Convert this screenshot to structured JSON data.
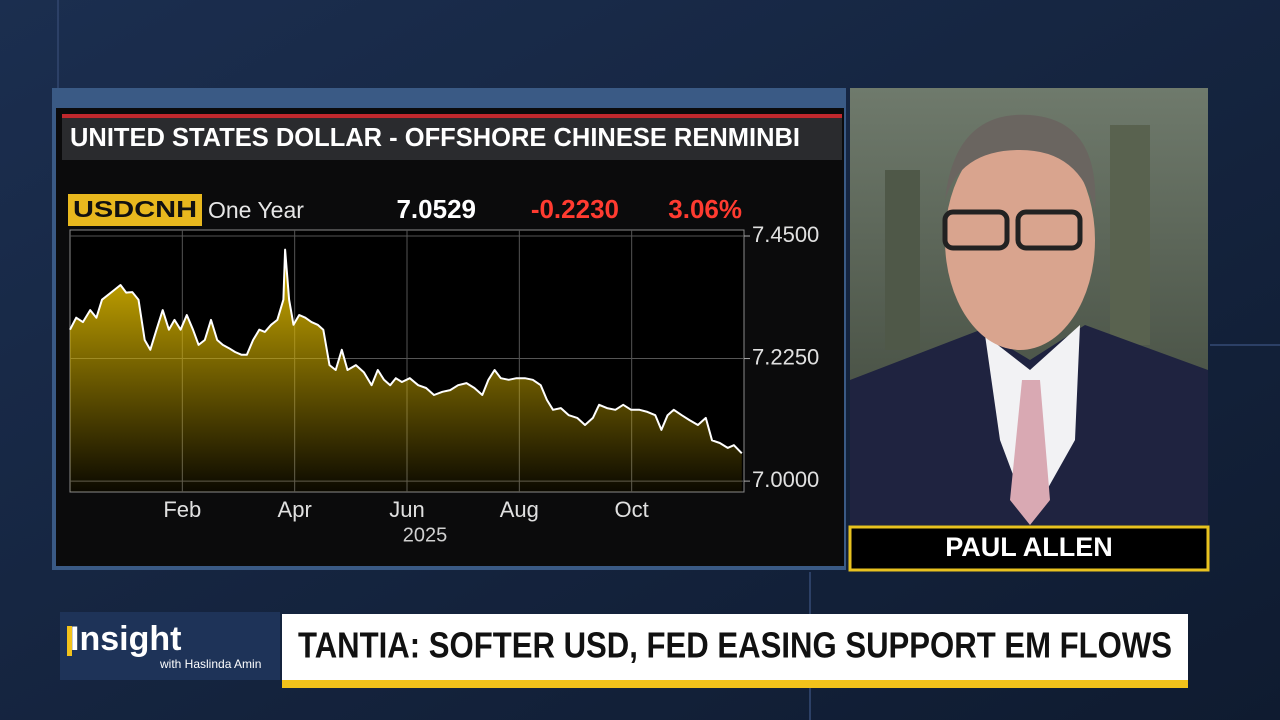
{
  "chart_data": {
    "type": "area",
    "title": "UNITED STATES DOLLAR - OFFSHORE CHINESE RENMINBI",
    "ticker": "USDCNH",
    "period": "One Year",
    "last": "7.0529",
    "change": "-0.2230",
    "change_pct": "3.06%",
    "x_label": "2025",
    "color": "#ffffff",
    "fill": "#d8b400",
    "grid": true,
    "xlim": [
      0,
      12
    ],
    "xticks": [
      {
        "value": 2,
        "label": "Feb"
      },
      {
        "value": 4,
        "label": "Apr"
      },
      {
        "value": 6,
        "label": "Jun"
      },
      {
        "value": 8,
        "label": "Aug"
      },
      {
        "value": 10,
        "label": "Oct"
      }
    ],
    "ylim": [
      6.98,
      7.461
    ],
    "yticks": [
      {
        "value": 7.45,
        "label": "7.4500"
      },
      {
        "value": 7.225,
        "label": "7.2250"
      },
      {
        "value": 7.0,
        "label": "7.0000"
      }
    ],
    "x": [
      0,
      0.11,
      0.23,
      0.36,
      0.47,
      0.57,
      0.68,
      0.79,
      0.9,
      1.0,
      1.11,
      1.22,
      1.33,
      1.43,
      1.54,
      1.65,
      1.76,
      1.86,
      1.97,
      2.08,
      2.19,
      2.29,
      2.4,
      2.51,
      2.62,
      2.72,
      2.83,
      2.94,
      3.05,
      3.15,
      3.26,
      3.37,
      3.47,
      3.58,
      3.69,
      3.8,
      3.83,
      3.9,
      3.98,
      4.08,
      4.19,
      4.3,
      4.41,
      4.51,
      4.62,
      4.73,
      4.84,
      4.94,
      5.09,
      5.23,
      5.37,
      5.48,
      5.59,
      5.7,
      5.8,
      5.91,
      6.05,
      6.2,
      6.34,
      6.48,
      6.63,
      6.77,
      6.91,
      7.06,
      7.2,
      7.34,
      7.45,
      7.56,
      7.67,
      7.81,
      7.95,
      8.1,
      8.24,
      8.38,
      8.49,
      8.6,
      8.74,
      8.88,
      9.03,
      9.17,
      9.31,
      9.42,
      9.56,
      9.71,
      9.85,
      9.99,
      10.14,
      10.28,
      10.42,
      10.53,
      10.64,
      10.75,
      10.89,
      11.03,
      11.18,
      11.32,
      11.43,
      11.57,
      11.71,
      11.82,
      11.96
    ],
    "values": [
      7.278,
      7.3,
      7.292,
      7.314,
      7.3,
      7.333,
      7.342,
      7.351,
      7.36,
      7.346,
      7.347,
      7.333,
      7.259,
      7.241,
      7.278,
      7.314,
      7.278,
      7.296,
      7.278,
      7.305,
      7.278,
      7.25,
      7.259,
      7.296,
      7.259,
      7.25,
      7.244,
      7.237,
      7.232,
      7.232,
      7.259,
      7.278,
      7.274,
      7.287,
      7.296,
      7.333,
      7.425,
      7.333,
      7.287,
      7.305,
      7.3,
      7.292,
      7.287,
      7.278,
      7.213,
      7.204,
      7.241,
      7.204,
      7.213,
      7.2,
      7.176,
      7.204,
      7.186,
      7.176,
      7.189,
      7.182,
      7.189,
      7.176,
      7.171,
      7.158,
      7.164,
      7.167,
      7.176,
      7.18,
      7.171,
      7.158,
      7.186,
      7.204,
      7.189,
      7.186,
      7.189,
      7.189,
      7.186,
      7.176,
      7.149,
      7.131,
      7.134,
      7.121,
      7.116,
      7.103,
      7.116,
      7.14,
      7.134,
      7.131,
      7.14,
      7.131,
      7.131,
      7.127,
      7.121,
      7.094,
      7.121,
      7.131,
      7.121,
      7.112,
      7.103,
      7.116,
      7.075,
      7.07,
      7.061,
      7.066,
      7.051
    ]
  },
  "broadcast": {
    "presenter": "PAUL ALLEN",
    "show": "Insight",
    "host": "with Haslinda Amin",
    "headline": "TANTIA: SOFTER USD, FED EASING SUPPORT EM FLOWS"
  }
}
